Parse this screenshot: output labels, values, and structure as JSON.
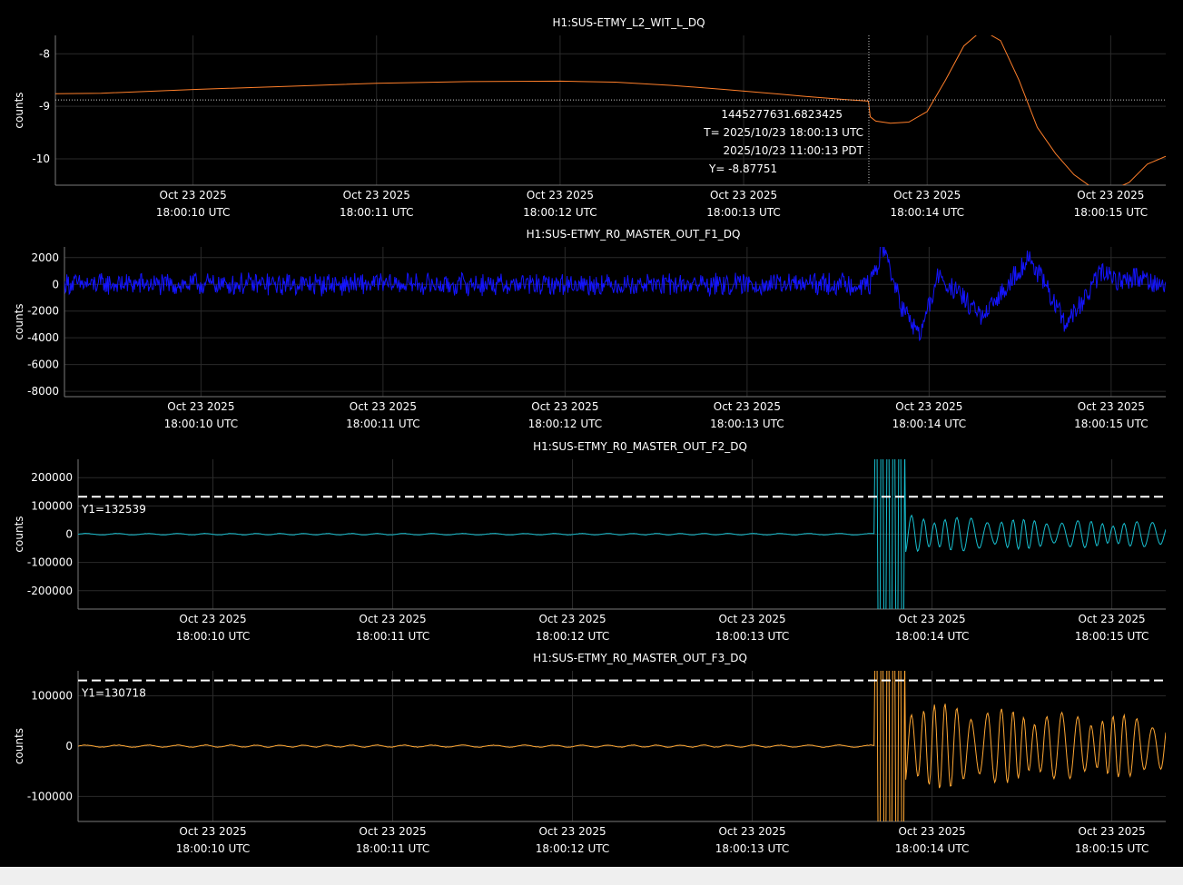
{
  "chart_data": [
    {
      "type": "line",
      "title": "H1:SUS-ETMY_L2_WIT_L_DQ",
      "ylabel": "counts",
      "xlim": [
        9.25,
        15.3
      ],
      "ylim": [
        -10.5,
        -7.65
      ],
      "yticks": [
        -8,
        -9,
        -10
      ],
      "xticks": [
        10,
        11,
        12,
        13,
        14,
        15
      ],
      "xtick_labels": [
        [
          "Oct 23 2025",
          "18:00:10 UTC"
        ],
        [
          "Oct 23 2025",
          "18:00:11 UTC"
        ],
        [
          "Oct 23 2025",
          "18:00:12 UTC"
        ],
        [
          "Oct 23 2025",
          "18:00:13 UTC"
        ],
        [
          "Oct 23 2025",
          "18:00:14 UTC"
        ],
        [
          "Oct 23 2025",
          "18:00:15 UTC"
        ]
      ],
      "line_color": "#ff7f2a",
      "grid": true,
      "series": [
        {
          "x": [
            9.25,
            9.5,
            10.0,
            10.5,
            11.0,
            11.5,
            12.0,
            12.3,
            12.6,
            12.9,
            13.2,
            13.4,
            13.55,
            13.68,
            13.69,
            13.72,
            13.8,
            13.9,
            14.0,
            14.1,
            14.2,
            14.3,
            14.4,
            14.5,
            14.6,
            14.7,
            14.8,
            14.9,
            15.0,
            15.1,
            15.2,
            15.3
          ],
          "y": [
            -8.76,
            -8.75,
            -8.68,
            -8.62,
            -8.56,
            -8.53,
            -8.52,
            -8.54,
            -8.6,
            -8.68,
            -8.77,
            -8.83,
            -8.87,
            -8.9,
            -9.2,
            -9.28,
            -9.32,
            -9.3,
            -9.1,
            -8.5,
            -7.85,
            -7.55,
            -7.75,
            -8.5,
            -9.4,
            -9.9,
            -10.3,
            -10.55,
            -10.6,
            -10.45,
            -10.1,
            -9.95
          ]
        }
      ],
      "crosshair": {
        "x": 13.6823425,
        "y": -8.87751,
        "labels": [
          "1445277631.6823425",
          "T= 2025/10/23 18:00:13 UTC",
          "2025/10/23 11:00:13 PDT",
          "Y= -8.87751"
        ]
      }
    },
    {
      "type": "line",
      "title": "H1:SUS-ETMY_R0_MASTER_OUT_F1_DQ",
      "ylabel": "counts",
      "xlim": [
        9.25,
        15.3
      ],
      "ylim": [
        -8400,
        2800
      ],
      "yticks": [
        2000,
        0,
        -2000,
        -4000,
        -6000,
        -8000
      ],
      "xticks": [
        10,
        11,
        12,
        13,
        14,
        15
      ],
      "xtick_labels": [
        [
          "Oct 23 2025",
          "18:00:10 UTC"
        ],
        [
          "Oct 23 2025",
          "18:00:11 UTC"
        ],
        [
          "Oct 23 2025",
          "18:00:12 UTC"
        ],
        [
          "Oct 23 2025",
          "18:00:13 UTC"
        ],
        [
          "Oct 23 2025",
          "18:00:14 UTC"
        ],
        [
          "Oct 23 2025",
          "18:00:15 UTC"
        ]
      ],
      "line_color": "#1414ff",
      "grid": true,
      "signal": {
        "pre_amp": 900,
        "event_x": 13.68,
        "post_amp": 1400,
        "post_envelope": [
          [
            13.68,
            200
          ],
          [
            13.75,
            2800
          ],
          [
            13.85,
            -1800
          ],
          [
            13.95,
            -3800
          ],
          [
            14.05,
            600
          ],
          [
            14.2,
            -1200
          ],
          [
            14.3,
            -2600
          ],
          [
            14.45,
            400
          ],
          [
            14.55,
            2000
          ],
          [
            14.65,
            -400
          ],
          [
            14.75,
            -3000
          ],
          [
            14.85,
            -1200
          ],
          [
            14.95,
            1000
          ],
          [
            15.05,
            200
          ],
          [
            15.15,
            600
          ],
          [
            15.3,
            -200
          ]
        ]
      }
    },
    {
      "type": "line",
      "title": "H1:SUS-ETMY_R0_MASTER_OUT_F2_DQ",
      "ylabel": "counts",
      "xlim": [
        9.25,
        15.3
      ],
      "ylim": [
        -265000,
        265000
      ],
      "yticks": [
        200000,
        100000,
        0,
        -100000,
        -200000
      ],
      "xticks": [
        10,
        11,
        12,
        13,
        14,
        15
      ],
      "xtick_labels": [
        [
          "Oct 23 2025",
          "18:00:10 UTC"
        ],
        [
          "Oct 23 2025",
          "18:00:11 UTC"
        ],
        [
          "Oct 23 2025",
          "18:00:12 UTC"
        ],
        [
          "Oct 23 2025",
          "18:00:13 UTC"
        ],
        [
          "Oct 23 2025",
          "18:00:14 UTC"
        ],
        [
          "Oct 23 2025",
          "18:00:15 UTC"
        ]
      ],
      "line_color": "#17becf",
      "grid": true,
      "threshold": {
        "value": 132539,
        "label": "Y1=132539"
      },
      "signal": {
        "pre_amp": 3000,
        "event_x": 13.68,
        "saturate_until": 13.85,
        "post_amp": 70000
      }
    },
    {
      "type": "line",
      "title": "H1:SUS-ETMY_R0_MASTER_OUT_F3_DQ",
      "ylabel": "counts",
      "xlim": [
        9.25,
        15.3
      ],
      "ylim": [
        -150000,
        150000
      ],
      "yticks": [
        100000,
        0,
        -100000
      ],
      "xticks": [
        10,
        11,
        12,
        13,
        14,
        15
      ],
      "xtick_labels": [
        [
          "Oct 23 2025",
          "18:00:10 UTC"
        ],
        [
          "Oct 23 2025",
          "18:00:11 UTC"
        ],
        [
          "Oct 23 2025",
          "18:00:12 UTC"
        ],
        [
          "Oct 23 2025",
          "18:00:13 UTC"
        ],
        [
          "Oct 23 2025",
          "18:00:14 UTC"
        ],
        [
          "Oct 23 2025",
          "18:00:15 UTC"
        ]
      ],
      "line_color": "#ffa733",
      "grid": true,
      "threshold": {
        "value": 130718,
        "label": "Y1=130718"
      },
      "signal": {
        "pre_amp": 2500,
        "event_x": 13.68,
        "saturate_until": 13.85,
        "post_amp": 95000
      }
    }
  ]
}
